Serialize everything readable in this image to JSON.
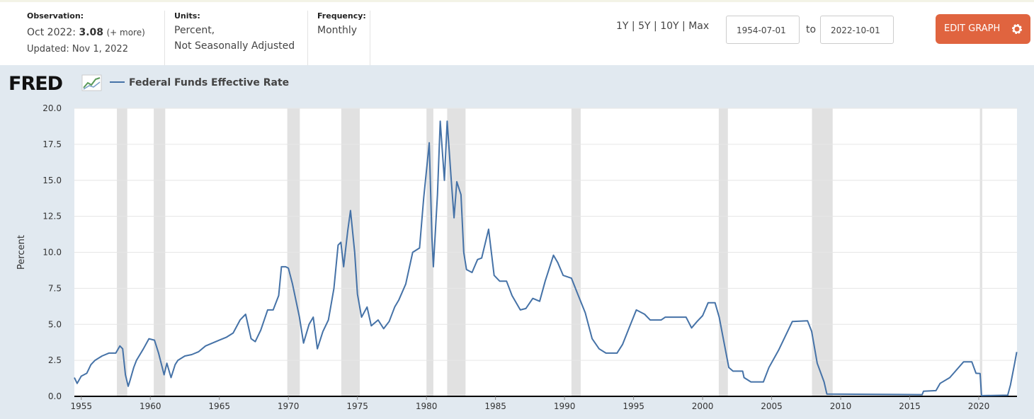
{
  "header": {
    "observation_label": "Observation:",
    "observation_date": "Oct 2022:",
    "observation_value": "3.08",
    "observation_more": "(+ more)",
    "updated": "Updated: Nov 1, 2022",
    "units_label": "Units:",
    "units_line1": "Percent,",
    "units_line2": "Not Seasonally Adjusted",
    "frequency_label": "Frequency:",
    "frequency": "Monthly",
    "ranges": [
      "1Y",
      "5Y",
      "10Y",
      "Max"
    ],
    "start_date": "1954-07-01",
    "to": "to",
    "end_date": "2022-10-01",
    "edit_button": "EDIT GRAPH"
  },
  "chart_data": {
    "type": "line",
    "logo": "FRED",
    "ylabel": "Percent",
    "xlim": [
      1954.5,
      2022.77
    ],
    "ylim": [
      0,
      20
    ],
    "xticks": [
      1955,
      1960,
      1965,
      1970,
      1975,
      1980,
      1985,
      1990,
      1995,
      2000,
      2005,
      2010,
      2015,
      2020
    ],
    "yticks": [
      {
        "value": 0,
        "label": "0.0"
      },
      {
        "value": 2.5,
        "label": "2.5"
      },
      {
        "value": 5,
        "label": "5.0"
      },
      {
        "value": 7.5,
        "label": "7.5"
      },
      {
        "value": 10,
        "label": "10.0"
      },
      {
        "value": 12.5,
        "label": "12.5"
      },
      {
        "value": 15,
        "label": "15.0"
      },
      {
        "value": 17.5,
        "label": "17.5"
      },
      {
        "value": 20,
        "label": "20.0"
      }
    ],
    "grid": true,
    "recessions": [
      [
        1957.58,
        1958.33
      ],
      [
        1960.25,
        1961.08
      ],
      [
        1969.92,
        1970.83
      ],
      [
        1973.83,
        1975.17
      ],
      [
        1980.0,
        1980.5
      ],
      [
        1981.5,
        1982.83
      ],
      [
        1990.5,
        1991.17
      ],
      [
        2001.17,
        2001.83
      ],
      [
        2007.92,
        2009.42
      ],
      [
        2020.08,
        2020.25
      ]
    ],
    "series": [
      {
        "name": "Federal Funds Effective Rate",
        "color": "#4572a7",
        "x": [
          1954.5,
          1954.7,
          1955.0,
          1955.4,
          1955.7,
          1956.0,
          1956.5,
          1957.0,
          1957.5,
          1957.8,
          1958.0,
          1958.2,
          1958.4,
          1958.5,
          1958.8,
          1959.0,
          1959.5,
          1959.9,
          1960.3,
          1960.6,
          1961.0,
          1961.2,
          1961.5,
          1961.8,
          1962.0,
          1962.5,
          1963.0,
          1963.5,
          1964.0,
          1965.0,
          1965.5,
          1966.0,
          1966.5,
          1966.9,
          1967.3,
          1967.6,
          1968.0,
          1968.5,
          1968.9,
          1969.3,
          1969.5,
          1969.8,
          1970.0,
          1970.3,
          1970.8,
          1971.1,
          1971.5,
          1971.8,
          1972.1,
          1972.5,
          1972.9,
          1973.3,
          1973.6,
          1973.8,
          1974.0,
          1974.3,
          1974.5,
          1974.8,
          1975.0,
          1975.3,
          1975.7,
          1976.0,
          1976.5,
          1976.9,
          1977.3,
          1977.7,
          1978.0,
          1978.5,
          1979.0,
          1979.5,
          1979.8,
          1980.2,
          1980.4,
          1980.5,
          1980.8,
          1981.0,
          1981.3,
          1981.5,
          1981.8,
          1982.0,
          1982.2,
          1982.5,
          1982.7,
          1982.9,
          1983.3,
          1983.7,
          1984.0,
          1984.5,
          1984.9,
          1985.3,
          1985.8,
          1986.2,
          1986.8,
          1987.2,
          1987.7,
          1988.2,
          1988.6,
          1989.2,
          1989.5,
          1989.9,
          1990.5,
          1991.0,
          1991.5,
          1992.0,
          1992.5,
          1993.0,
          1993.8,
          1994.2,
          1994.7,
          1995.2,
          1995.8,
          1996.2,
          1997.0,
          1997.3,
          1998.8,
          1999.2,
          1999.6,
          2000.0,
          2000.4,
          2000.9,
          2001.2,
          2001.5,
          2001.9,
          2002.2,
          2002.9,
          2003.0,
          2003.5,
          2004.4,
          2004.8,
          2005.5,
          2006.5,
          2007.6,
          2007.9,
          2008.3,
          2008.8,
          2009.0,
          2015.9,
          2016.0,
          2016.9,
          2017.2,
          2017.9,
          2018.9,
          2019.5,
          2019.8,
          2020.1,
          2020.2,
          2022.1,
          2022.3,
          2022.6,
          2022.75
        ],
        "values": [
          1.3,
          0.9,
          1.4,
          1.6,
          2.2,
          2.5,
          2.8,
          3.0,
          3.0,
          3.5,
          3.3,
          1.5,
          0.7,
          1.0,
          2.0,
          2.5,
          3.3,
          4.0,
          3.9,
          3.0,
          1.5,
          2.3,
          1.3,
          2.2,
          2.5,
          2.8,
          2.9,
          3.1,
          3.5,
          3.9,
          4.1,
          4.4,
          5.3,
          5.7,
          4.0,
          3.8,
          4.6,
          6.0,
          6.0,
          7.0,
          9.0,
          9.0,
          8.9,
          7.8,
          5.5,
          3.7,
          5.0,
          5.5,
          3.3,
          4.5,
          5.3,
          7.5,
          10.5,
          10.7,
          9.0,
          11.5,
          12.9,
          10.0,
          7.1,
          5.5,
          6.2,
          4.9,
          5.3,
          4.7,
          5.2,
          6.2,
          6.7,
          7.8,
          10.0,
          10.3,
          13.8,
          17.6,
          11.0,
          9.0,
          14.0,
          19.1,
          15.0,
          19.1,
          15.0,
          12.4,
          14.9,
          14.0,
          10.0,
          8.8,
          8.6,
          9.5,
          9.6,
          11.6,
          8.4,
          8.0,
          8.0,
          7.0,
          6.0,
          6.1,
          6.8,
          6.6,
          8.0,
          9.8,
          9.3,
          8.4,
          8.2,
          7.0,
          5.8,
          4.0,
          3.3,
          3.0,
          3.0,
          3.6,
          4.8,
          6.0,
          5.7,
          5.3,
          5.3,
          5.5,
          5.5,
          4.75,
          5.2,
          5.6,
          6.5,
          6.5,
          5.5,
          4.0,
          2.0,
          1.75,
          1.75,
          1.3,
          1.0,
          1.0,
          2.0,
          3.2,
          5.2,
          5.25,
          4.5,
          2.3,
          1.0,
          0.16,
          0.12,
          0.36,
          0.4,
          0.9,
          1.3,
          2.4,
          2.4,
          1.6,
          1.58,
          0.05,
          0.08,
          0.8,
          2.3,
          3.08
        ]
      }
    ]
  }
}
